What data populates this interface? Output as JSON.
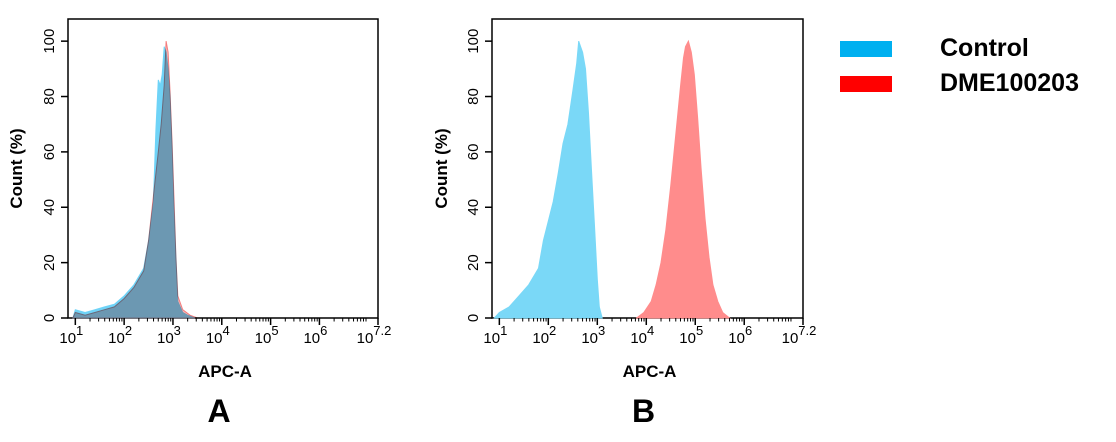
{
  "legend": [
    {
      "label": "Control",
      "color": "#00b0f0"
    },
    {
      "label": "DME100203",
      "color": "#ff0000"
    }
  ],
  "chart_data": [
    {
      "type": "area",
      "panel_label": "A",
      "xlabel": "APC-A",
      "ylabel": "Count  (%)",
      "xscale": "log",
      "xlim": [
        0.85,
        7.2
      ],
      "ylim": [
        0,
        108
      ],
      "x_ticks": [
        {
          "value": 1,
          "base": "10",
          "exp": "1"
        },
        {
          "value": 2,
          "base": "10",
          "exp": "2"
        },
        {
          "value": 3,
          "base": "10",
          "exp": "3"
        },
        {
          "value": 4,
          "base": "10",
          "exp": "4"
        },
        {
          "value": 5,
          "base": "10",
          "exp": "5"
        },
        {
          "value": 6,
          "base": "10",
          "exp": "6"
        },
        {
          "value": 7.2,
          "base": "10",
          "exp": "7.2"
        }
      ],
      "y_ticks": [
        0,
        20,
        40,
        60,
        80,
        100
      ],
      "overlay": true,
      "series": [
        {
          "name": "Control",
          "fill": "#6fd3f7",
          "points": [
            [
              0.95,
              0
            ],
            [
              1.0,
              3
            ],
            [
              1.2,
              2
            ],
            [
              1.4,
              3
            ],
            [
              1.6,
              4
            ],
            [
              1.8,
              5
            ],
            [
              2.0,
              8
            ],
            [
              2.2,
              12
            ],
            [
              2.4,
              18
            ],
            [
              2.5,
              28
            ],
            [
              2.6,
              42
            ],
            [
              2.65,
              68
            ],
            [
              2.7,
              86
            ],
            [
              2.74,
              84
            ],
            [
              2.78,
              88
            ],
            [
              2.82,
              98
            ],
            [
              2.86,
              96
            ],
            [
              2.9,
              90
            ],
            [
              2.94,
              80
            ],
            [
              2.98,
              62
            ],
            [
              3.02,
              40
            ],
            [
              3.06,
              22
            ],
            [
              3.1,
              6
            ],
            [
              3.2,
              2
            ],
            [
              3.3,
              1
            ],
            [
              3.45,
              0
            ]
          ]
        },
        {
          "name": "DME100203",
          "fill": "#f47d7d",
          "points": [
            [
              0.95,
              0
            ],
            [
              1.0,
              2
            ],
            [
              1.2,
              1
            ],
            [
              1.4,
              2
            ],
            [
              1.6,
              3
            ],
            [
              1.8,
              4
            ],
            [
              2.0,
              7
            ],
            [
              2.2,
              11
            ],
            [
              2.4,
              17
            ],
            [
              2.5,
              28
            ],
            [
              2.6,
              44
            ],
            [
              2.7,
              60
            ],
            [
              2.76,
              70
            ],
            [
              2.82,
              84
            ],
            [
              2.86,
              100
            ],
            [
              2.9,
              96
            ],
            [
              2.94,
              82
            ],
            [
              2.98,
              64
            ],
            [
              3.02,
              44
            ],
            [
              3.06,
              22
            ],
            [
              3.1,
              8
            ],
            [
              3.2,
              3
            ],
            [
              3.35,
              1
            ],
            [
              3.5,
              0
            ]
          ]
        }
      ]
    },
    {
      "type": "area",
      "panel_label": "B",
      "xlabel": "APC-A",
      "ylabel": "Count  (%)",
      "xscale": "log",
      "xlim": [
        0.85,
        7.2
      ],
      "ylim": [
        0,
        108
      ],
      "x_ticks": [
        {
          "value": 1,
          "base": "10",
          "exp": "1"
        },
        {
          "value": 2,
          "base": "10",
          "exp": "2"
        },
        {
          "value": 3,
          "base": "10",
          "exp": "3"
        },
        {
          "value": 4,
          "base": "10",
          "exp": "4"
        },
        {
          "value": 5,
          "base": "10",
          "exp": "5"
        },
        {
          "value": 6,
          "base": "10",
          "exp": "6"
        },
        {
          "value": 7.2,
          "base": "10",
          "exp": "7.2"
        }
      ],
      "y_ticks": [
        0,
        20,
        40,
        60,
        80,
        100
      ],
      "overlay": false,
      "series": [
        {
          "name": "Control",
          "fill": "#7ad8f7",
          "points": [
            [
              0.9,
              0
            ],
            [
              1.0,
              2
            ],
            [
              1.2,
              4
            ],
            [
              1.4,
              8
            ],
            [
              1.6,
              12
            ],
            [
              1.8,
              18
            ],
            [
              1.9,
              28
            ],
            [
              2.0,
              35
            ],
            [
              2.1,
              42
            ],
            [
              2.2,
              52
            ],
            [
              2.3,
              63
            ],
            [
              2.4,
              70
            ],
            [
              2.5,
              82
            ],
            [
              2.58,
              92
            ],
            [
              2.62,
              100
            ],
            [
              2.66,
              98
            ],
            [
              2.7,
              96
            ],
            [
              2.76,
              90
            ],
            [
              2.82,
              74
            ],
            [
              2.88,
              54
            ],
            [
              2.94,
              34
            ],
            [
              3.0,
              14
            ],
            [
              3.04,
              4
            ],
            [
              3.1,
              0
            ]
          ]
        },
        {
          "name": "DME100203",
          "fill": "#ff8c8c",
          "points": [
            [
              3.8,
              0
            ],
            [
              3.95,
              2
            ],
            [
              4.1,
              6
            ],
            [
              4.2,
              12
            ],
            [
              4.3,
              20
            ],
            [
              4.4,
              32
            ],
            [
              4.5,
              48
            ],
            [
              4.6,
              66
            ],
            [
              4.7,
              84
            ],
            [
              4.76,
              94
            ],
            [
              4.8,
              98
            ],
            [
              4.86,
              100
            ],
            [
              4.92,
              96
            ],
            [
              4.98,
              88
            ],
            [
              5.05,
              72
            ],
            [
              5.12,
              54
            ],
            [
              5.2,
              36
            ],
            [
              5.28,
              22
            ],
            [
              5.36,
              12
            ],
            [
              5.46,
              6
            ],
            [
              5.56,
              2
            ],
            [
              5.7,
              0
            ]
          ]
        }
      ]
    }
  ]
}
